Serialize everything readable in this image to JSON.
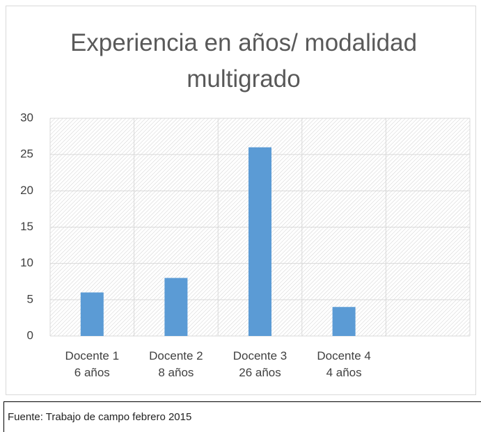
{
  "chart_data": {
    "type": "bar",
    "title": "Experiencia en años/ modalidad multigrado",
    "categories": [
      "Docente 1\n6 años",
      "Docente 2\n8 años",
      "Docente 3\n26 años",
      "Docente 4\n4 años",
      null
    ],
    "values": [
      6,
      8,
      26,
      4,
      null
    ],
    "color": "#5b9bd5",
    "ylim": [
      0,
      30
    ],
    "yticks": [
      0,
      5,
      10,
      15,
      20,
      25,
      30
    ],
    "grid": true
  },
  "source": "Fuente: Trabajo de campo febrero 2015"
}
